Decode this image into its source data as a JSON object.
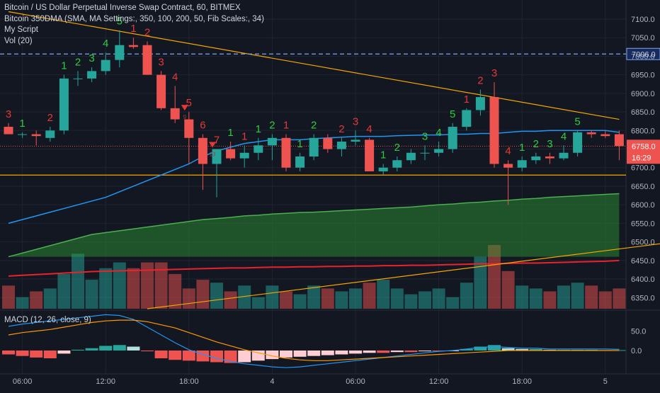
{
  "legend": {
    "line1": "Bitcoin / US Dollar Perpetual Inverse Swap Contract, 60, BITMEX",
    "line2": "Bitcoin 350DMA (SMA, MA Settings:, 350, 100, 200, 50, Fib Scales:, 34)",
    "line3": "My Script",
    "line4": "Vol (20)",
    "macd": "MACD (12, 26, close, 9)"
  },
  "colors": {
    "background": "#131722",
    "up": "#26a69a",
    "down": "#ef5350",
    "grid": "#1f2430",
    "text": "#b2b5be",
    "ma_blue": "#2196f3",
    "orange": "#f7a600",
    "red_line": "#e8232b",
    "green_band": "#2e9d32",
    "td_green": "#2ecc40",
    "td_red": "#e53935"
  },
  "chart_data": {
    "type": "candlestick",
    "title": "Bitcoin / US Dollar Perpetual Inverse Swap Contract, 60, BITMEX",
    "ylim": [
      6320,
      7140
    ],
    "price_ticks": [
      "7100.0",
      "7050.0",
      "7000.0",
      "6950.0",
      "6900.0",
      "6850.0",
      "6800.0",
      "6750.0",
      "6700.0",
      "6650.0",
      "6600.0",
      "6550.0",
      "6500.0",
      "6450.0",
      "6400.0",
      "6350.0"
    ],
    "price_tick_values": [
      7100,
      7050,
      7000,
      6950,
      6900,
      6850,
      6800,
      6750,
      6700,
      6650,
      6600,
      6550,
      6500,
      6450,
      6400,
      6350
    ],
    "time_labels": [
      "06:00",
      "12:00",
      "18:00",
      "4",
      "06:00",
      "12:00",
      "18:00",
      "5"
    ],
    "time_label_index": [
      1,
      7,
      13,
      19,
      25,
      31,
      37,
      43
    ],
    "candles": [
      {
        "o": 6810,
        "h": 6820,
        "l": 6790,
        "c": 6790
      },
      {
        "o": 6790,
        "h": 6795,
        "l": 6780,
        "c": 6790
      },
      {
        "o": 6790,
        "h": 6800,
        "l": 6760,
        "c": 6785
      },
      {
        "o": 6780,
        "h": 6810,
        "l": 6770,
        "c": 6800
      },
      {
        "o": 6800,
        "h": 6950,
        "l": 6790,
        "c": 6940
      },
      {
        "o": 6940,
        "h": 6960,
        "l": 6920,
        "c": 6940
      },
      {
        "o": 6940,
        "h": 6970,
        "l": 6930,
        "c": 6960
      },
      {
        "o": 6960,
        "h": 7010,
        "l": 6950,
        "c": 6990
      },
      {
        "o": 6990,
        "h": 7070,
        "l": 6970,
        "c": 7030
      },
      {
        "o": 7030,
        "h": 7050,
        "l": 7020,
        "c": 7025
      },
      {
        "o": 7030,
        "h": 7040,
        "l": 6950,
        "c": 6950
      },
      {
        "o": 6950,
        "h": 6960,
        "l": 6855,
        "c": 6860
      },
      {
        "o": 6860,
        "h": 6920,
        "l": 6820,
        "c": 6830
      },
      {
        "o": 6830,
        "h": 6850,
        "l": 6710,
        "c": 6780
      },
      {
        "o": 6780,
        "h": 6790,
        "l": 6640,
        "c": 6710
      },
      {
        "o": 6710,
        "h": 6750,
        "l": 6620,
        "c": 6750
      },
      {
        "o": 6750,
        "h": 6770,
        "l": 6720,
        "c": 6725
      },
      {
        "o": 6725,
        "h": 6760,
        "l": 6700,
        "c": 6740
      },
      {
        "o": 6740,
        "h": 6780,
        "l": 6720,
        "c": 6760
      },
      {
        "o": 6760,
        "h": 6790,
        "l": 6720,
        "c": 6780
      },
      {
        "o": 6780,
        "h": 6790,
        "l": 6690,
        "c": 6700
      },
      {
        "o": 6700,
        "h": 6740,
        "l": 6690,
        "c": 6730
      },
      {
        "o": 6730,
        "h": 6790,
        "l": 6720,
        "c": 6780
      },
      {
        "o": 6780,
        "h": 6790,
        "l": 6740,
        "c": 6750
      },
      {
        "o": 6750,
        "h": 6780,
        "l": 6730,
        "c": 6770
      },
      {
        "o": 6770,
        "h": 6800,
        "l": 6760,
        "c": 6775
      },
      {
        "o": 6775,
        "h": 6780,
        "l": 6690,
        "c": 6690
      },
      {
        "o": 6690,
        "h": 6710,
        "l": 6680,
        "c": 6700
      },
      {
        "o": 6700,
        "h": 6730,
        "l": 6690,
        "c": 6720
      },
      {
        "o": 6720,
        "h": 6750,
        "l": 6710,
        "c": 6740
      },
      {
        "o": 6740,
        "h": 6760,
        "l": 6720,
        "c": 6740
      },
      {
        "o": 6740,
        "h": 6770,
        "l": 6730,
        "c": 6750
      },
      {
        "o": 6750,
        "h": 6820,
        "l": 6740,
        "c": 6810
      },
      {
        "o": 6810,
        "h": 6860,
        "l": 6800,
        "c": 6855
      },
      {
        "o": 6855,
        "h": 6910,
        "l": 6840,
        "c": 6890
      },
      {
        "o": 6890,
        "h": 6930,
        "l": 6700,
        "c": 6710
      },
      {
        "o": 6710,
        "h": 6720,
        "l": 6600,
        "c": 6700
      },
      {
        "o": 6700,
        "h": 6730,
        "l": 6690,
        "c": 6720
      },
      {
        "o": 6720,
        "h": 6740,
        "l": 6710,
        "c": 6730
      },
      {
        "o": 6730,
        "h": 6740,
        "l": 6710,
        "c": 6725
      },
      {
        "o": 6725,
        "h": 6760,
        "l": 6720,
        "c": 6740
      },
      {
        "o": 6740,
        "h": 6800,
        "l": 6730,
        "c": 6795
      },
      {
        "o": 6795,
        "h": 6800,
        "l": 6780,
        "c": 6790
      },
      {
        "o": 6790,
        "h": 6800,
        "l": 6780,
        "c": 6785
      },
      {
        "o": 6790,
        "h": 6800,
        "l": 6720,
        "c": 6758
      }
    ],
    "volume": [
      40,
      20,
      30,
      35,
      60,
      95,
      50,
      70,
      80,
      70,
      80,
      80,
      60,
      35,
      50,
      45,
      30,
      40,
      20,
      40,
      30,
      25,
      40,
      35,
      30,
      35,
      45,
      50,
      35,
      25,
      30,
      35,
      20,
      45,
      90,
      110,
      65,
      40,
      35,
      30,
      40,
      45,
      40,
      30,
      35
    ],
    "ma_blue": [
      6550,
      6560,
      6570,
      6580,
      6590,
      6600,
      6610,
      6620,
      6635,
      6650,
      6665,
      6680,
      6695,
      6710,
      6730,
      6745,
      6755,
      6765,
      6770,
      6775,
      6775,
      6775,
      6778,
      6780,
      6782,
      6784,
      6784,
      6784,
      6786,
      6787,
      6788,
      6788,
      6790,
      6790,
      6792,
      6792,
      6795,
      6798,
      6798,
      6800,
      6800,
      6800,
      6800,
      6800,
      6795
    ],
    "green_band_top": [
      6460,
      6470,
      6480,
      6490,
      6500,
      6510,
      6520,
      6525,
      6530,
      6535,
      6540,
      6545,
      6550,
      6555,
      6560,
      6563,
      6566,
      6570,
      6572,
      6575,
      6577,
      6579,
      6580,
      6582,
      6584,
      6586,
      6588,
      6590,
      6592,
      6594,
      6597,
      6600,
      6602,
      6605,
      6607,
      6610,
      6612,
      6615,
      6617,
      6620,
      6622,
      6624,
      6626,
      6628,
      6630
    ],
    "green_band_bottom": 6460,
    "red_line": [
      6408,
      6410,
      6412,
      6414,
      6416,
      6418,
      6420,
      6421,
      6422,
      6423,
      6424,
      6425,
      6426,
      6427,
      6428,
      6429,
      6430,
      6430,
      6431,
      6432,
      6432,
      6433,
      6433,
      6434,
      6434,
      6435,
      6435,
      6436,
      6436,
      6437,
      6437,
      6438,
      6439,
      6440,
      6441,
      6441,
      6442,
      6443,
      6443,
      6444,
      6445,
      6446,
      6447,
      6448,
      6450
    ],
    "orange_resistance": [
      [
        0,
        7120
      ],
      [
        44,
        6830
      ]
    ],
    "orange_support_y": 6680,
    "orange_rising": [
      [
        10,
        6320
      ],
      [
        48,
        6500
      ]
    ],
    "last_price": "6758.0",
    "countdown": "16:29",
    "dashed_level": "7006.0",
    "dashed_level_value": 7006,
    "td_labels": [
      {
        "i": 0,
        "t": "3",
        "c": "red",
        "pos": "above"
      },
      {
        "i": 1,
        "t": "1",
        "c": "green",
        "pos": "above"
      },
      {
        "i": 3,
        "t": "2",
        "c": "red",
        "pos": "above"
      },
      {
        "i": 4,
        "t": "1",
        "c": "green",
        "pos": "above"
      },
      {
        "i": 5,
        "t": "2",
        "c": "green",
        "pos": "above"
      },
      {
        "i": 6,
        "t": "3",
        "c": "green",
        "pos": "above"
      },
      {
        "i": 7,
        "t": "4",
        "c": "green",
        "pos": "above"
      },
      {
        "i": 8,
        "t": "5",
        "c": "green",
        "pos": "above"
      },
      {
        "i": 9,
        "t": "1",
        "c": "red",
        "pos": "above"
      },
      {
        "i": 10,
        "t": "2",
        "c": "red",
        "pos": "above"
      },
      {
        "i": 11,
        "t": "3",
        "c": "red",
        "pos": "above"
      },
      {
        "i": 12,
        "t": "4",
        "c": "red",
        "pos": "above"
      },
      {
        "i": 13,
        "t": "5",
        "c": "red",
        "pos": "above"
      },
      {
        "i": 14,
        "t": "6",
        "c": "red",
        "pos": "above"
      },
      {
        "i": 15,
        "t": "7",
        "c": "red",
        "pos": "above"
      },
      {
        "i": 16,
        "t": "1",
        "c": "green",
        "pos": "above"
      },
      {
        "i": 17,
        "t": "1",
        "c": "red",
        "pos": "above"
      },
      {
        "i": 18,
        "t": "1",
        "c": "green",
        "pos": "above"
      },
      {
        "i": 19,
        "t": "2",
        "c": "green",
        "pos": "above"
      },
      {
        "i": 20,
        "t": "1",
        "c": "red",
        "pos": "above"
      },
      {
        "i": 21,
        "t": "1",
        "c": "green",
        "pos": "above"
      },
      {
        "i": 22,
        "t": "2",
        "c": "green",
        "pos": "above"
      },
      {
        "i": 24,
        "t": "2",
        "c": "red",
        "pos": "above"
      },
      {
        "i": 25,
        "t": "3",
        "c": "red",
        "pos": "above"
      },
      {
        "i": 26,
        "t": "4",
        "c": "red",
        "pos": "above"
      },
      {
        "i": 27,
        "t": "1",
        "c": "green",
        "pos": "above"
      },
      {
        "i": 28,
        "t": "2",
        "c": "green",
        "pos": "above"
      },
      {
        "i": 30,
        "t": "3",
        "c": "green",
        "pos": "above"
      },
      {
        "i": 31,
        "t": "4",
        "c": "green",
        "pos": "above"
      },
      {
        "i": 32,
        "t": "5",
        "c": "green",
        "pos": "above"
      },
      {
        "i": 33,
        "t": "1",
        "c": "red",
        "pos": "above"
      },
      {
        "i": 34,
        "t": "2",
        "c": "red",
        "pos": "above"
      },
      {
        "i": 35,
        "t": "3",
        "c": "red",
        "pos": "above"
      },
      {
        "i": 36,
        "t": "4",
        "c": "red",
        "pos": "above"
      },
      {
        "i": 37,
        "t": "1",
        "c": "green",
        "pos": "above"
      },
      {
        "i": 38,
        "t": "2",
        "c": "green",
        "pos": "above"
      },
      {
        "i": 39,
        "t": "3",
        "c": "green",
        "pos": "above"
      },
      {
        "i": 40,
        "t": "4",
        "c": "green",
        "pos": "above"
      },
      {
        "i": 41,
        "t": "5",
        "c": "green",
        "pos": "above"
      }
    ],
    "sell_markers": [
      {
        "i": 13,
        "label": "9"
      },
      {
        "i": 15,
        "label": "13"
      }
    ],
    "macd": {
      "ticks": [
        "50.0",
        "0.0"
      ],
      "tick_values": [
        50,
        0
      ],
      "ylim": [
        -60,
        100
      ],
      "hist": [
        -10,
        -14,
        -18,
        -20,
        -8,
        2,
        6,
        12,
        14,
        10,
        -2,
        -20,
        -24,
        -26,
        -28,
        -30,
        -32,
        -30,
        -26,
        -22,
        -18,
        -16,
        -14,
        -12,
        -10,
        -8,
        -6,
        -6,
        -4,
        -4,
        -2,
        -2,
        -1,
        4,
        10,
        14,
        6,
        4,
        4,
        2,
        2,
        2,
        2,
        1,
        1
      ],
      "macd_line": [
        62,
        68,
        72,
        76,
        80,
        84,
        88,
        92,
        90,
        80,
        60,
        40,
        20,
        2,
        -10,
        -20,
        -28,
        -34,
        -38,
        -42,
        -44,
        -42,
        -38,
        -34,
        -30,
        -26,
        -22,
        -18,
        -14,
        -10,
        -6,
        -2,
        0,
        4,
        8,
        10,
        8,
        6,
        6,
        4,
        4,
        4,
        4,
        4,
        3
      ],
      "signal_line": [
        40,
        46,
        50,
        54,
        60,
        66,
        72,
        76,
        78,
        78,
        74,
        66,
        58,
        46,
        34,
        22,
        12,
        2,
        -6,
        -14,
        -20,
        -24,
        -26,
        -26,
        -24,
        -22,
        -20,
        -18,
        -16,
        -14,
        -12,
        -10,
        -8,
        -6,
        -4,
        -2,
        0,
        0,
        0,
        0,
        0,
        0,
        0,
        0,
        0
      ]
    }
  }
}
